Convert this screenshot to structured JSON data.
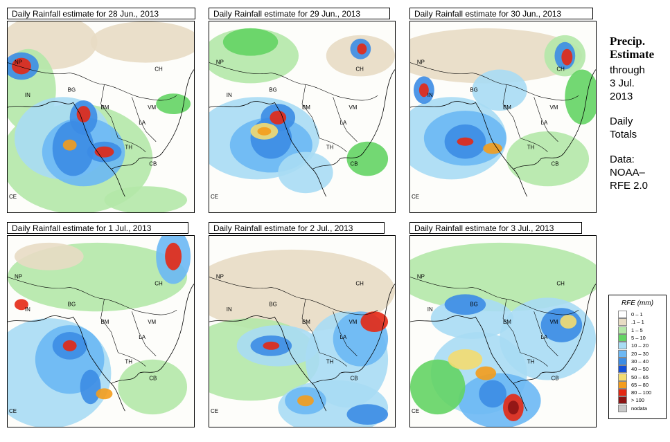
{
  "panels": [
    {
      "title": "Daily Rainfall estimate for  28 Jun., 2013"
    },
    {
      "title": "Daily Rainfall estimate for  29 Jun., 2013"
    },
    {
      "title": "Daily Rainfall estimate for  30 Jun., 2013"
    },
    {
      "title": "Daily Rainfall estimate for  1 Jul., 2013"
    },
    {
      "title": "Daily Rainfall estimate for  2 Jul., 2013"
    },
    {
      "title": "Daily Rainfall estimate for  3 Jul., 2013"
    }
  ],
  "map_labels": {
    "np": "NP",
    "ch": "CH",
    "in": "IN",
    "bg": "BG",
    "bm": "BM",
    "vm": "VM",
    "la": "LA",
    "th": "TH",
    "cb": "CB",
    "ce": "CE"
  },
  "sidebar": {
    "heading1": "Precip.",
    "heading2": "Estimate",
    "through": "through",
    "date1": "3 Jul.",
    "date2": "2013",
    "daily1": "Daily",
    "daily2": "Totals",
    "data1": "Data:",
    "data2": "NOAA–",
    "data3": "RFE 2.0"
  },
  "legend": {
    "title": "RFE (mm)",
    "items": [
      {
        "label": "0 – 1",
        "color": "#ffffff"
      },
      {
        "label": ".1 – 1",
        "color": "#e8dcc4"
      },
      {
        "label": "1 – 5",
        "color": "#b4e8a8"
      },
      {
        "label": "5 – 10",
        "color": "#64d464"
      },
      {
        "label": "10 – 20",
        "color": "#a8dcf4"
      },
      {
        "label": "20 – 30",
        "color": "#6cb8f4"
      },
      {
        "label": "30 – 40",
        "color": "#3c8ce4"
      },
      {
        "label": "40 – 50",
        "color": "#1450d8"
      },
      {
        "label": "50 – 65",
        "color": "#f4dc70"
      },
      {
        "label": "65 – 80",
        "color": "#f49c1c"
      },
      {
        "label": "80 – 100",
        "color": "#e42814"
      },
      {
        "label": "> 100",
        "color": "#8c1414"
      },
      {
        "label": "nodata",
        "color": "#c8c8c8"
      }
    ]
  }
}
